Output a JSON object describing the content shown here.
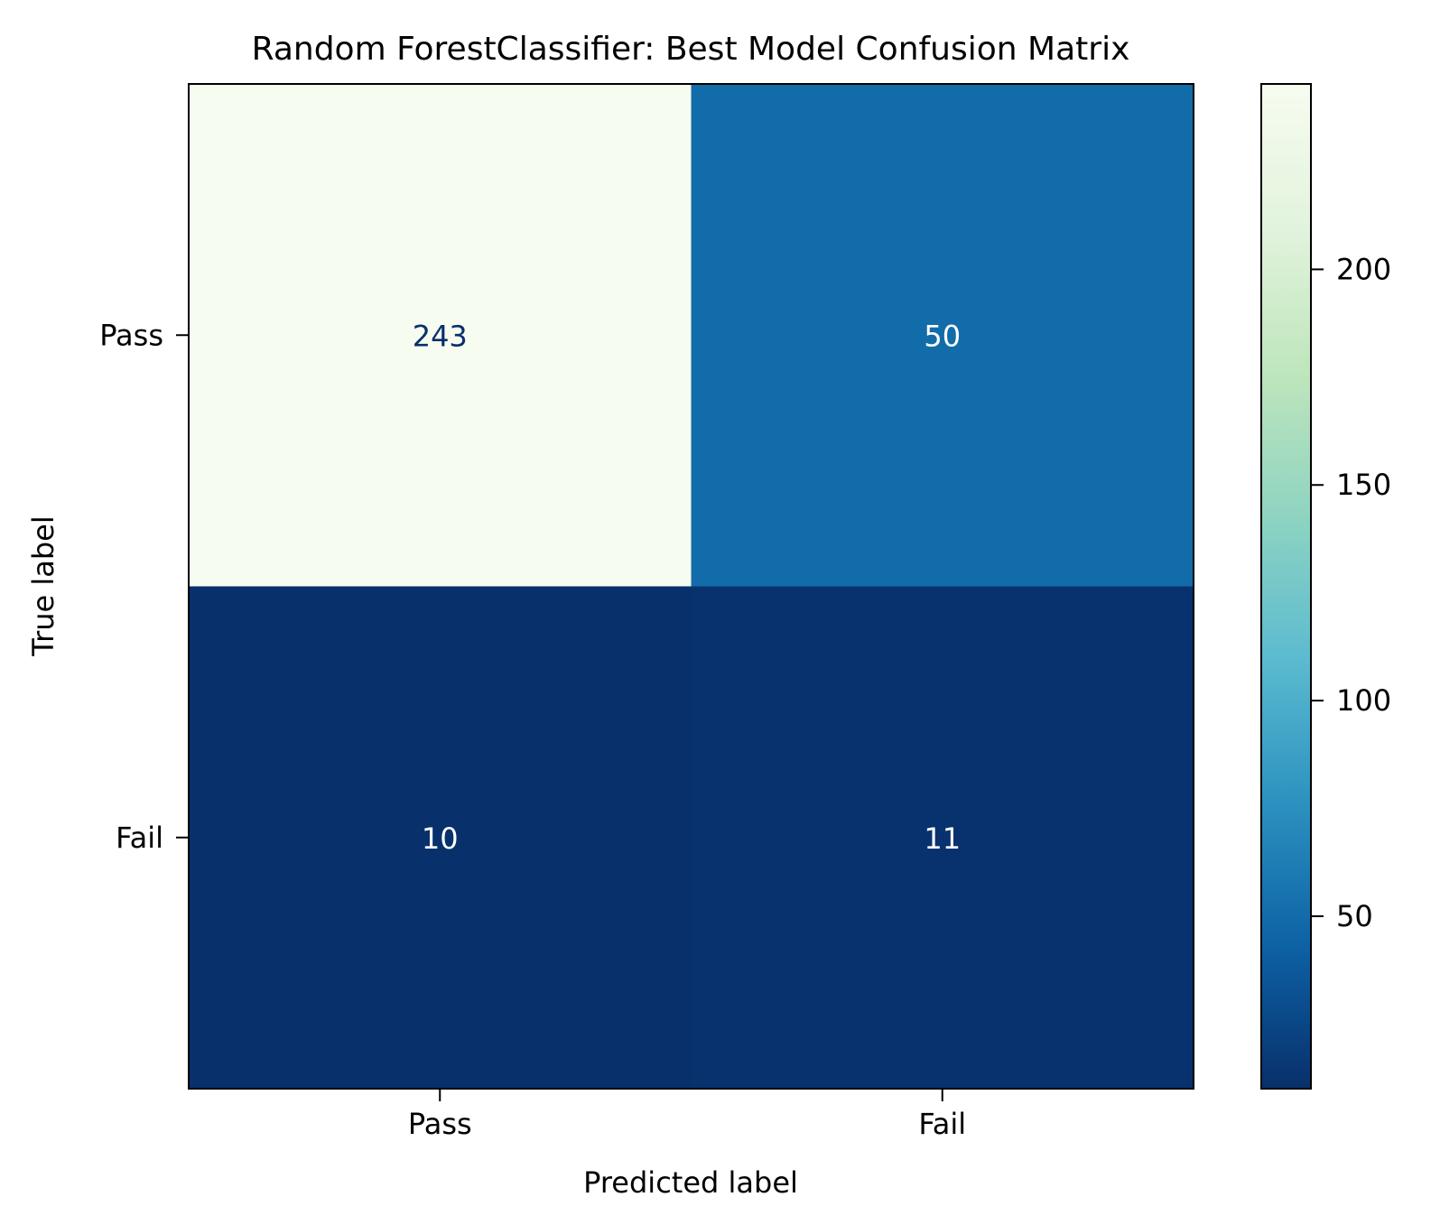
{
  "chart_data": {
    "type": "heatmap",
    "title": "Random ForestClassifier: Best Model Confusion Matrix",
    "xlabel": "Predicted label",
    "ylabel": "True label",
    "x_categories": [
      "Pass",
      "Fail"
    ],
    "y_categories": [
      "Pass",
      "Fail"
    ],
    "matrix": [
      [
        243,
        50
      ],
      [
        10,
        11
      ]
    ],
    "colormap": "GnBu_r",
    "colorbar": {
      "range": [
        10,
        243
      ],
      "ticks": [
        50,
        100,
        150,
        200
      ],
      "tick_labels": [
        "50",
        "100",
        "150",
        "200"
      ]
    },
    "grid": false
  },
  "colors": {
    "cmap_stops": [
      "#08306b",
      "#0d62a5",
      "#2c92bf",
      "#5cbbd0",
      "#8fd4c1",
      "#bfe6bc",
      "#e2f3dd",
      "#f7fcf0"
    ],
    "dark_text": "#08306b",
    "light_text": "#ffffff",
    "axis": "#000000"
  }
}
